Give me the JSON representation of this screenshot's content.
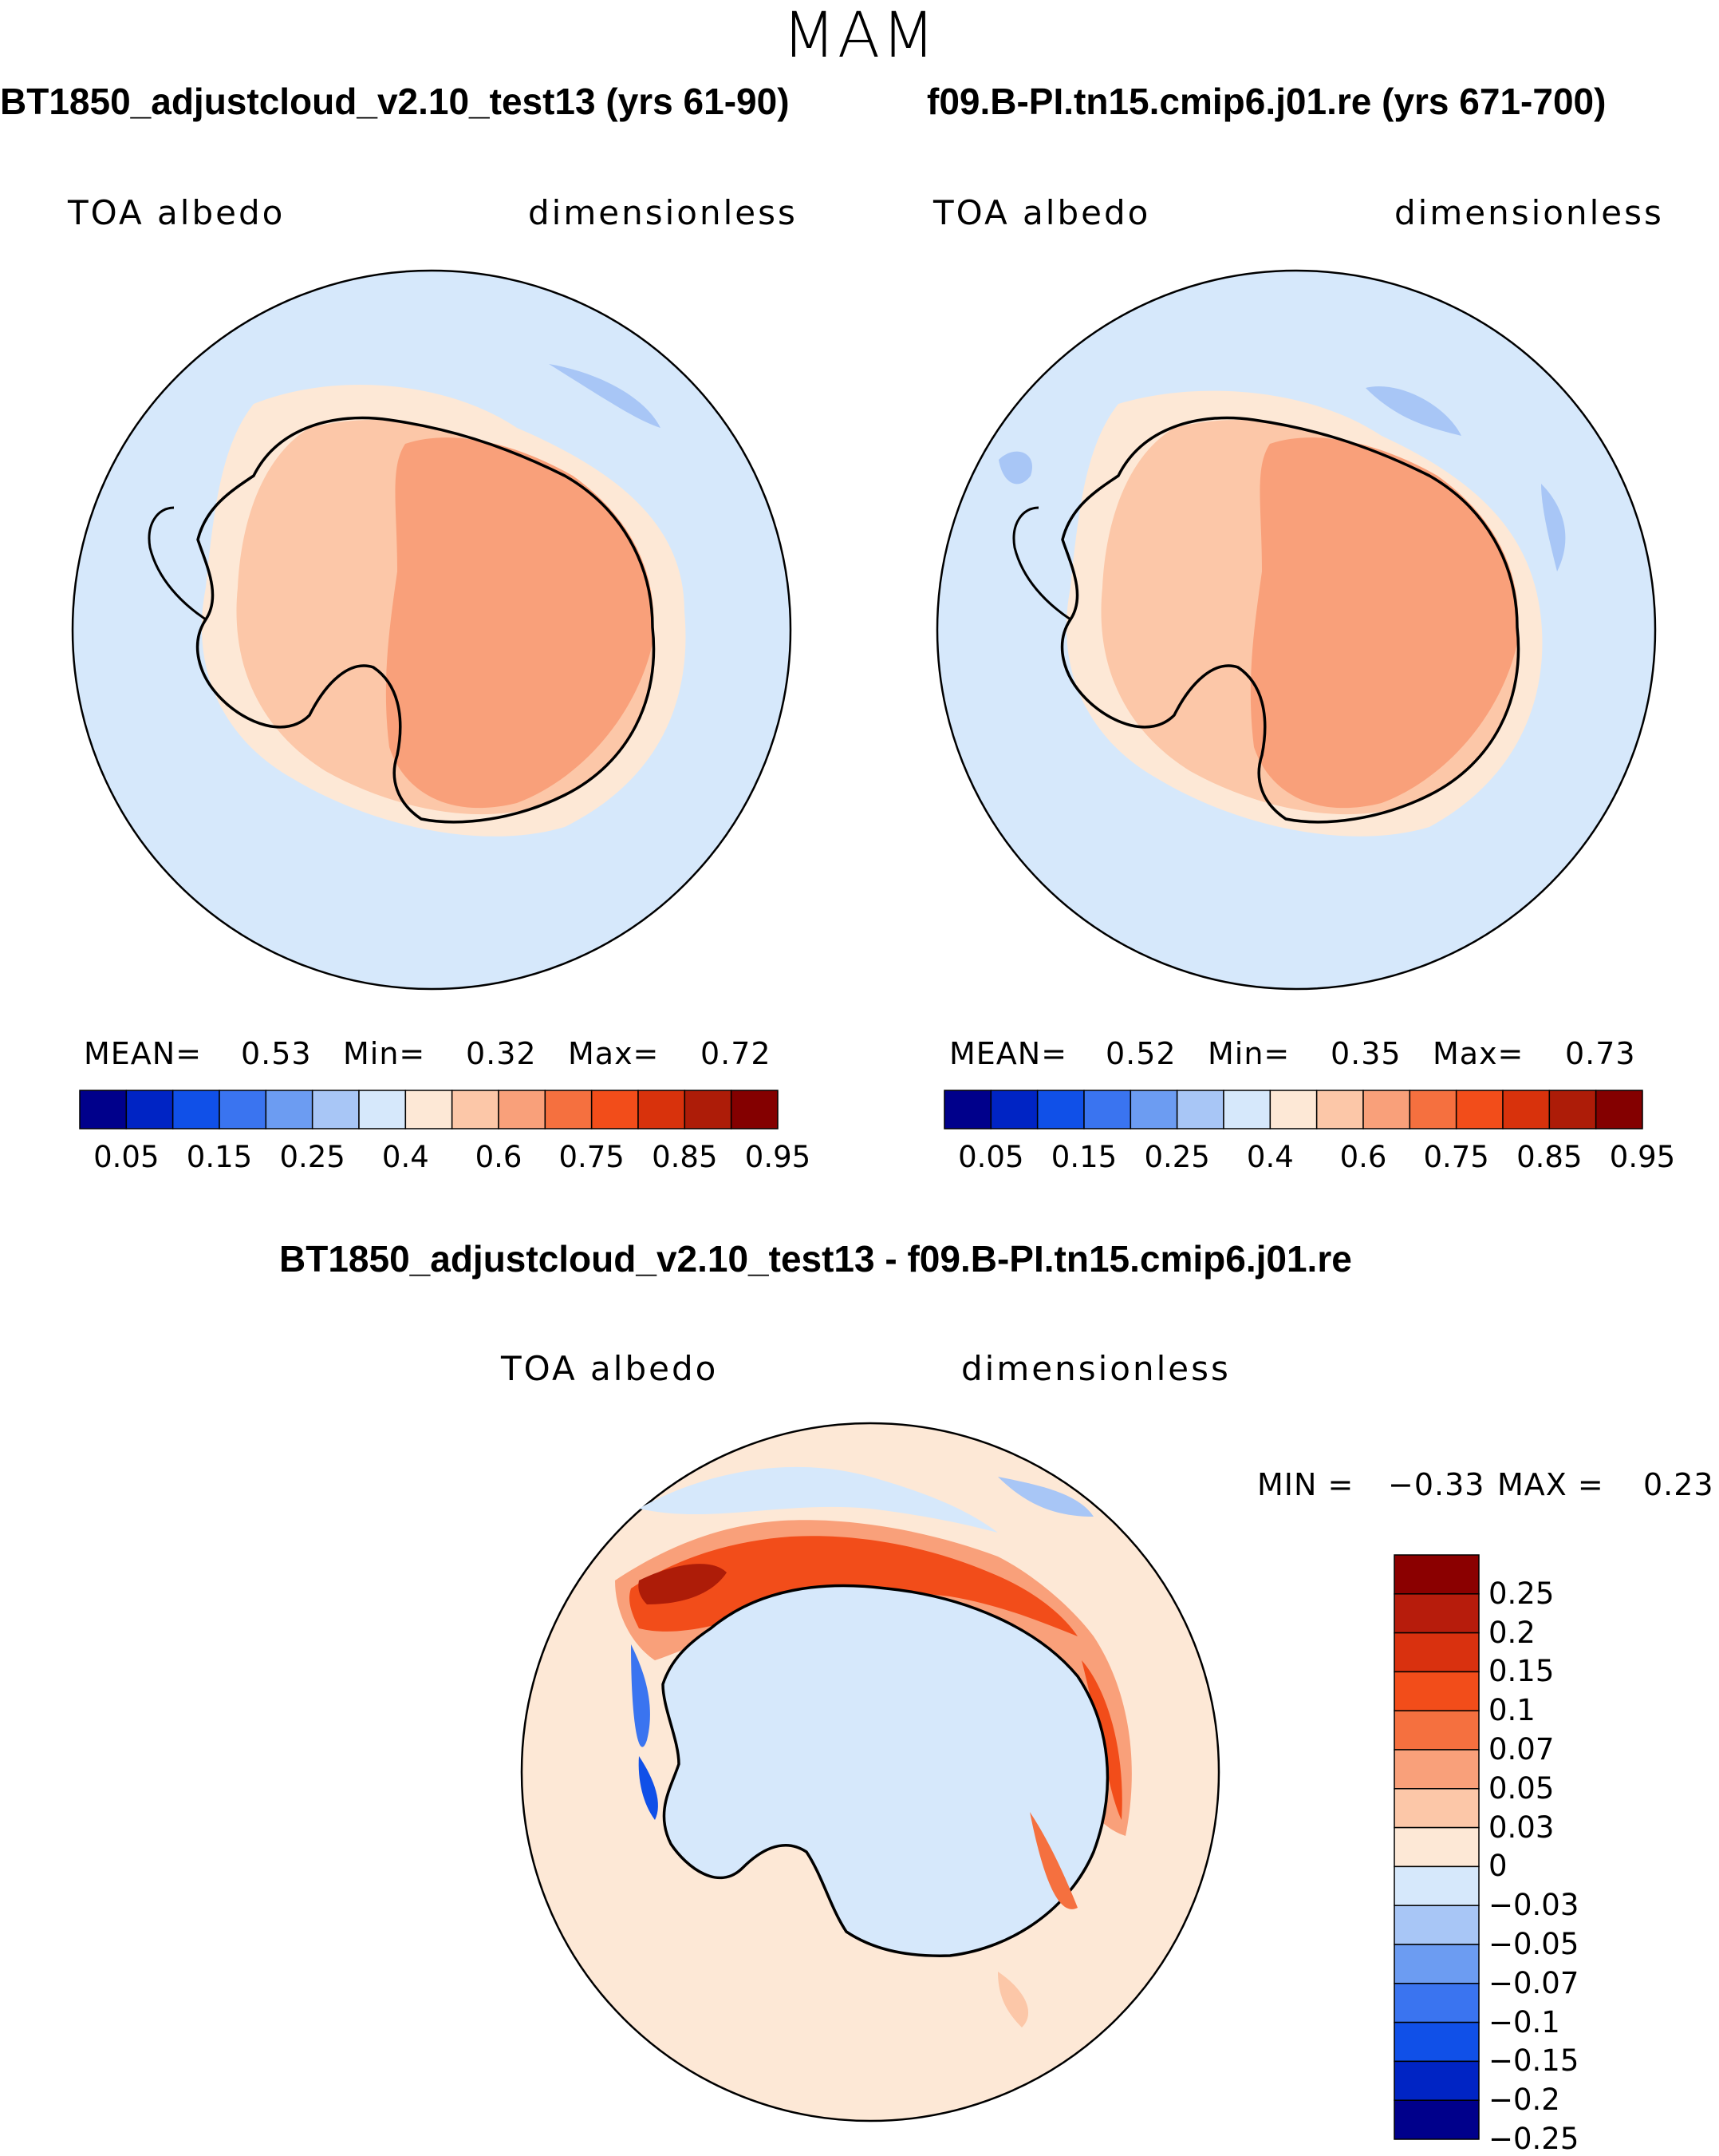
{
  "season": "MAM",
  "chart_data": [
    {
      "type": "heatmap",
      "projection": "south polar stereographic",
      "title": "BT1850_adjustcloud_v2.10_test13 (yrs 61-90)",
      "variable": "TOA albedo",
      "units": "dimensionless",
      "stats": {
        "mean_label": "MEAN=",
        "mean": "0.53",
        "min_label": "Min=",
        "min": "0.32",
        "max_label": "Max=",
        "max": "0.72"
      },
      "colorbar": {
        "orientation": "horizontal",
        "colors": [
          "#00008b",
          "#0024c4",
          "#1050e8",
          "#3a74f0",
          "#6c9cf2",
          "#a8c6f6",
          "#d6e8fb",
          "#fde8d6",
          "#fcc7a8",
          "#f9a07a",
          "#f5703f",
          "#f24d1a",
          "#d8320c",
          "#ad1c08",
          "#840000"
        ],
        "tick_labels": [
          "0.05",
          "0.15",
          "0.25",
          "0.4",
          "0.6",
          "0.75",
          "0.85",
          "0.95"
        ]
      }
    },
    {
      "type": "heatmap",
      "projection": "south polar stereographic",
      "title": "f09.B-PI.tn15.cmip6.j01.re (yrs 671-700)",
      "variable": "TOA albedo",
      "units": "dimensionless",
      "stats": {
        "mean_label": "MEAN=",
        "mean": "0.52",
        "min_label": "Min=",
        "min": "0.35",
        "max_label": "Max=",
        "max": "0.73"
      },
      "colorbar": {
        "orientation": "horizontal",
        "colors": [
          "#00008b",
          "#0024c4",
          "#1050e8",
          "#3a74f0",
          "#6c9cf2",
          "#a8c6f6",
          "#d6e8fb",
          "#fde8d6",
          "#fcc7a8",
          "#f9a07a",
          "#f5703f",
          "#f24d1a",
          "#d8320c",
          "#ad1c08",
          "#840000"
        ],
        "tick_labels": [
          "0.05",
          "0.15",
          "0.25",
          "0.4",
          "0.6",
          "0.75",
          "0.85",
          "0.95"
        ]
      }
    },
    {
      "type": "heatmap",
      "projection": "south polar stereographic",
      "title": "BT1850_adjustcloud_v2.10_test13 - f09.B-PI.tn15.cmip6.j01.re",
      "variable": "TOA albedo",
      "units": "dimensionless",
      "stats": {
        "min_label": "MIN =",
        "min": "−0.33",
        "max_label": "MAX =",
        "max": "0.23"
      },
      "colorbar": {
        "orientation": "vertical",
        "colors_top_to_bottom": [
          "#8b0000",
          "#b71c0c",
          "#d9310f",
          "#f24d1a",
          "#f5703f",
          "#f9a07a",
          "#fcc7a8",
          "#fde8d6",
          "#d6e8fb",
          "#a8c6f6",
          "#6c9cf2",
          "#3a74f0",
          "#1050e8",
          "#0024c4",
          "#00008b"
        ],
        "tick_labels": [
          "0.25",
          "0.2",
          "0.15",
          "0.1",
          "0.07",
          "0.05",
          "0.03",
          "0",
          "−0.03",
          "−0.05",
          "−0.07",
          "−0.1",
          "−0.15",
          "−0.2",
          "−0.25"
        ]
      }
    }
  ]
}
